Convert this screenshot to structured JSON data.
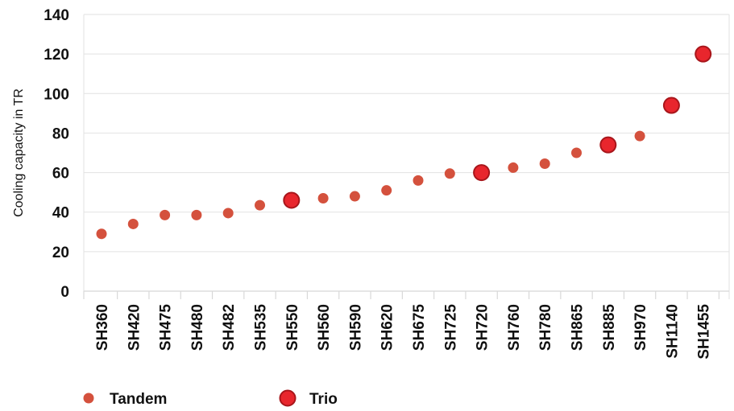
{
  "chart_data": {
    "type": "scatter",
    "categories": [
      "SH360",
      "SH420",
      "SH475",
      "SH480",
      "SH482",
      "SH535",
      "SH550",
      "SH560",
      "SH590",
      "SH620",
      "SH675",
      "SH725",
      "SH720",
      "SH760",
      "SH780",
      "SH865",
      "SH885",
      "SH970",
      "SH1140",
      "SH1455"
    ],
    "series": [
      {
        "name": "Tandem",
        "color": "#d4513d",
        "points": [
          {
            "x": "SH360",
            "y": 29
          },
          {
            "x": "SH420",
            "y": 34
          },
          {
            "x": "SH475",
            "y": 38.5
          },
          {
            "x": "SH480",
            "y": 38.5
          },
          {
            "x": "SH482",
            "y": 39.5
          },
          {
            "x": "SH535",
            "y": 43.5
          },
          {
            "x": "SH560",
            "y": 47
          },
          {
            "x": "SH590",
            "y": 48
          },
          {
            "x": "SH620",
            "y": 51
          },
          {
            "x": "SH675",
            "y": 56
          },
          {
            "x": "SH725",
            "y": 59.5
          },
          {
            "x": "SH760",
            "y": 62.5
          },
          {
            "x": "SH780",
            "y": 64.5
          },
          {
            "x": "SH865",
            "y": 70
          },
          {
            "x": "SH970",
            "y": 78.5
          }
        ]
      },
      {
        "name": "Trio",
        "color": "#e8262d",
        "points": [
          {
            "x": "SH550",
            "y": 46
          },
          {
            "x": "SH720",
            "y": 60
          },
          {
            "x": "SH885",
            "y": 74
          },
          {
            "x": "SH1140",
            "y": 94
          },
          {
            "x": "SH1455",
            "y": 120
          }
        ]
      }
    ],
    "ylabel": "Cooling capacity in TR",
    "xlabel": "",
    "ylim": [
      0,
      140
    ],
    "yticks": [
      0,
      20,
      40,
      60,
      80,
      100,
      120,
      140
    ],
    "grid": true,
    "legend": "bottom-left"
  }
}
